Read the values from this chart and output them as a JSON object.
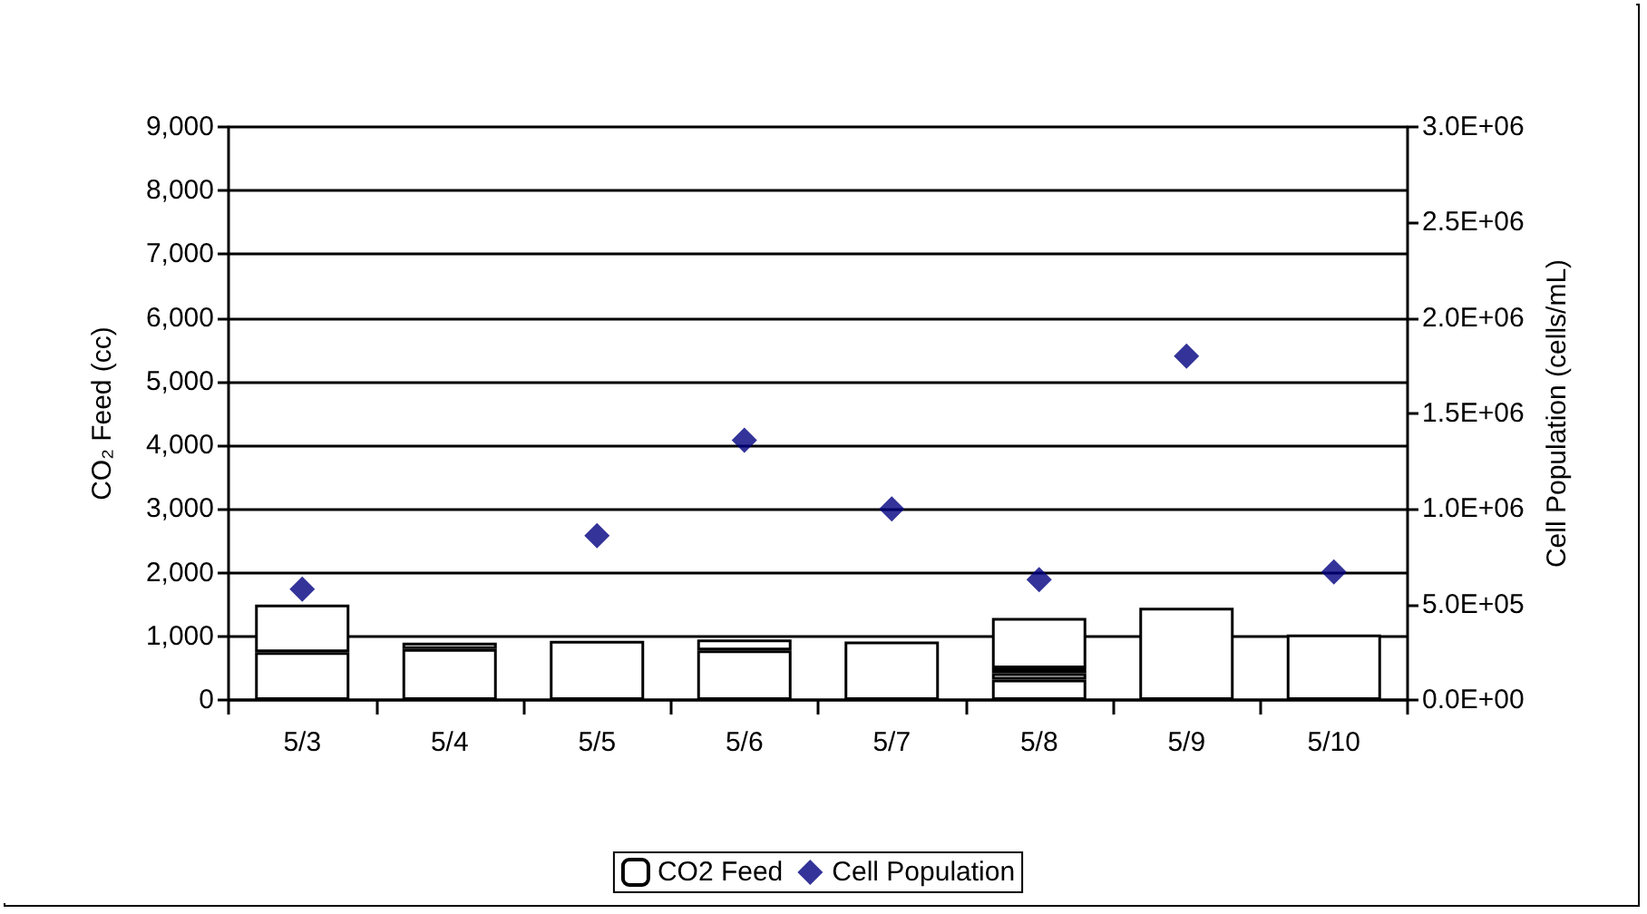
{
  "chart_data": {
    "type": "bar",
    "stacked": true,
    "categories": [
      "5/3",
      "5/4",
      "5/5",
      "5/6",
      "5/7",
      "5/8",
      "5/9",
      "5/10"
    ],
    "ylabel": "CO₂ Feed (cc)",
    "y2label": "Cell Population (cells/mL)",
    "series": [
      {
        "name": "CO2 Feed",
        "color": "#ffffff",
        "values": [
          750,
          800,
          930,
          780,
          920,
          320,
          1450,
          1030
        ]
      },
      {
        "color": "#ffffff",
        "values": [
          750,
          100,
          null,
          170,
          null,
          100,
          null,
          null
        ]
      },
      {
        "color": "#ffffff",
        "values": [
          null,
          null,
          null,
          null,
          null,
          80,
          null,
          null
        ]
      },
      {
        "color": "#ffffff",
        "values": [
          null,
          null,
          null,
          null,
          null,
          790,
          null,
          null
        ]
      },
      {
        "name": "Cell Population",
        "type": "scatter",
        "axis": "y2",
        "color": "#000080",
        "marker": "diamond",
        "values": [
          580000,
          null,
          860000,
          1360000,
          1000000,
          630000,
          1800000,
          670000
        ]
      }
    ],
    "ylim": [
      0,
      9000
    ],
    "yticks": [
      {
        "value": 0,
        "label": "0"
      },
      {
        "value": 1000,
        "label": "1,000"
      },
      {
        "value": 2000,
        "label": "2,000"
      },
      {
        "value": 3000,
        "label": "3,000"
      },
      {
        "value": 4000,
        "label": "4,000"
      },
      {
        "value": 5000,
        "label": "5,000"
      },
      {
        "value": 6000,
        "label": "6,000"
      },
      {
        "value": 7000,
        "label": "7,000"
      },
      {
        "value": 8000,
        "label": "8,000"
      },
      {
        "value": 9000,
        "label": "9,000"
      }
    ],
    "y2lim": [
      0,
      3000000
    ],
    "y2ticks": [
      {
        "value": 0,
        "label": "0.0E+00"
      },
      {
        "value": 500000,
        "label": "5.0E+05"
      },
      {
        "value": 1000000,
        "label": "1.0E+06"
      },
      {
        "value": 1500000,
        "label": "1.5E+06"
      },
      {
        "value": 2000000,
        "label": "2.0E+06"
      },
      {
        "value": 2500000,
        "label": "2.5E+06"
      },
      {
        "value": 3000000,
        "label": "3.0E+06"
      }
    ],
    "grid": "y",
    "legend": "bottom"
  }
}
